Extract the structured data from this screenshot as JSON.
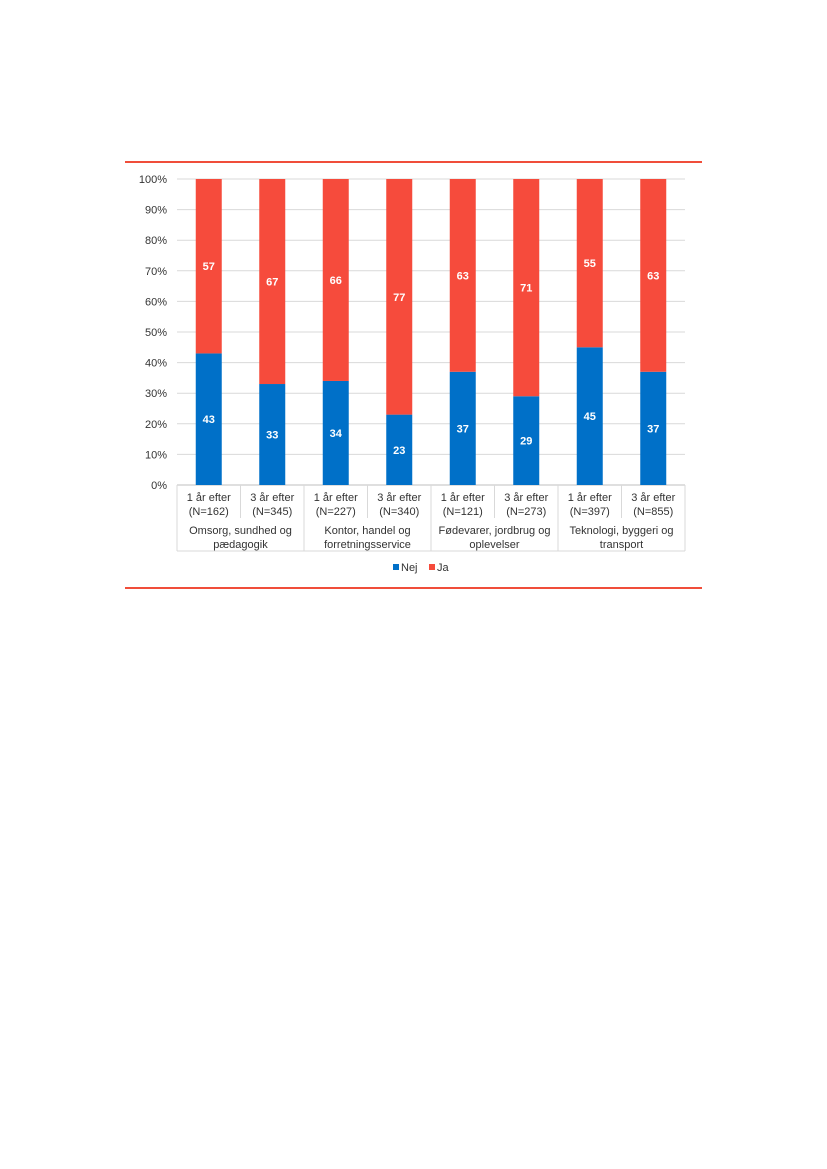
{
  "chart_data": {
    "type": "bar",
    "stacked": true,
    "ylim": [
      0,
      100
    ],
    "y_ticks": [
      "0%",
      "10%",
      "20%",
      "30%",
      "40%",
      "50%",
      "60%",
      "70%",
      "80%",
      "90%",
      "100%"
    ],
    "grid": true,
    "legend_position": "bottom",
    "categories": [
      {
        "line1": "1 år efter",
        "line2": "(N=162)"
      },
      {
        "line1": "3 år efter",
        "line2": "(N=345)"
      },
      {
        "line1": "1 år efter",
        "line2": "(N=227)"
      },
      {
        "line1": "3 år efter",
        "line2": "(N=340)"
      },
      {
        "line1": "1 år efter",
        "line2": "(N=121)"
      },
      {
        "line1": "3 år efter",
        "line2": "(N=273)"
      },
      {
        "line1": "1 år efter",
        "line2": "(N=397)"
      },
      {
        "line1": "3 år efter",
        "line2": "(N=855)"
      }
    ],
    "groups": [
      {
        "line1": "Omsorg, sundhed og",
        "line2": "pædagogik"
      },
      {
        "line1": "Kontor, handel og",
        "line2": "forretningsservice"
      },
      {
        "line1": "Fødevarer, jordbrug og",
        "line2": "oplevelser"
      },
      {
        "line1": "Teknologi, byggeri og",
        "line2": "transport"
      }
    ],
    "series": [
      {
        "name": "Nej",
        "color": "#0070c8",
        "values": [
          43,
          33,
          34,
          23,
          37,
          29,
          45,
          37
        ]
      },
      {
        "name": "Ja",
        "color": "#f64b3c",
        "values": [
          57,
          67,
          66,
          77,
          63,
          71,
          55,
          63
        ]
      }
    ]
  }
}
